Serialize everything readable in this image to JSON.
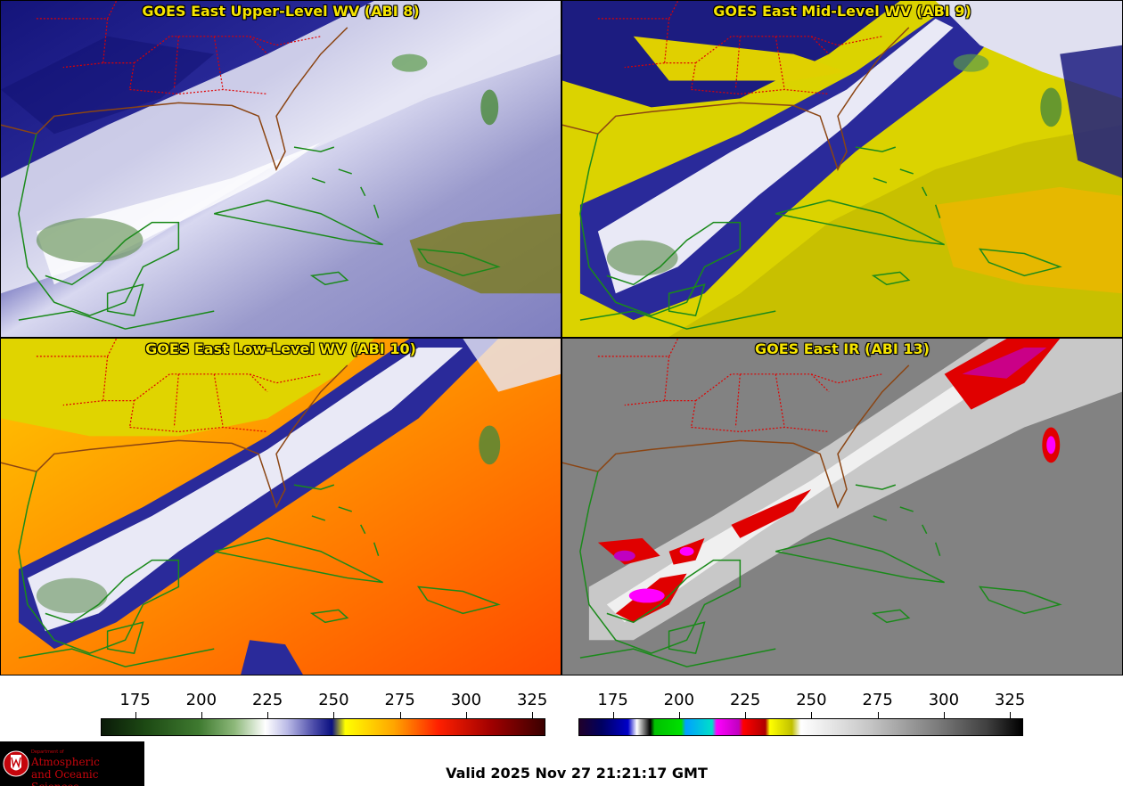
{
  "panels": [
    {
      "id": "upper",
      "title": "GOES East Upper-Level WV (ABI 8)",
      "colormap": "wv"
    },
    {
      "id": "mid",
      "title": "GOES East Mid-Level WV (ABI 9)",
      "colormap": "wv"
    },
    {
      "id": "low",
      "title": "GOES East Low-Level WV (ABI 10)",
      "colormap": "wv"
    },
    {
      "id": "ir",
      "title": "GOES East IR (ABI 13)",
      "colormap": "ir"
    }
  ],
  "colorbars": {
    "wv": {
      "ticks": [
        "175",
        "200",
        "225",
        "250",
        "275",
        "300",
        "325"
      ],
      "range": [
        162,
        330
      ]
    },
    "ir": {
      "ticks": [
        "175",
        "200",
        "225",
        "250",
        "275",
        "300",
        "325"
      ],
      "range": [
        162,
        330
      ]
    }
  },
  "colors": {
    "title": "#f5e400",
    "state_border": "#e00000",
    "coastline": "#1a8a1a",
    "us_coast": "#8b4513"
  },
  "logo": {
    "dept": "Department of",
    "line1": "Atmospheric",
    "line2": "and Oceanic Sciences"
  },
  "valid": "Valid 2025 Nov 27 21:21:17 GMT"
}
